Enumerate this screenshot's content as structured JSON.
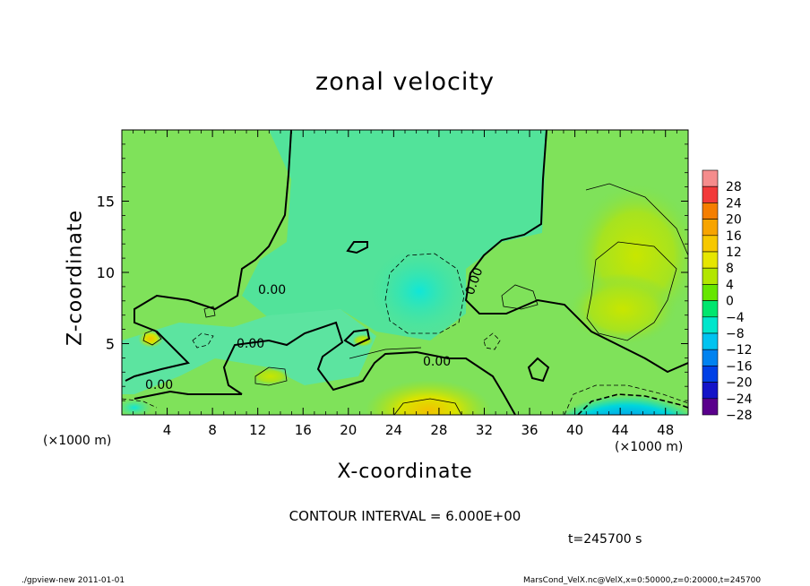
{
  "chart_data": {
    "type": "heatmap",
    "title": "zonal velocity",
    "xlabel": "X-coordinate",
    "ylabel": "Z-coordinate",
    "x_unit": "(×1000 m)",
    "y_unit": "(×1000 m)",
    "xlim": [
      0,
      50
    ],
    "ylim": [
      0,
      20
    ],
    "x_ticks": [
      "4",
      "8",
      "12",
      "16",
      "20",
      "24",
      "28",
      "32",
      "36",
      "40",
      "44",
      "48"
    ],
    "y_ticks": [
      "5",
      "10",
      "15"
    ],
    "colorbar_labels": [
      "28",
      "24",
      "20",
      "16",
      "12",
      "8",
      "4",
      "0",
      "−4",
      "−8",
      "−12",
      "−16",
      "−20",
      "−24",
      "−28"
    ],
    "colorbar_colors": [
      "#f58c8c",
      "#f23a3a",
      "#f57e00",
      "#f7a400",
      "#f6c800",
      "#e6e600",
      "#b2e600",
      "#66e600",
      "#00e66e",
      "#00e6cc",
      "#00c3f0",
      "#0082f0",
      "#0040e6",
      "#1414c8",
      "#5a008c"
    ],
    "contour_labels": [
      "0.00",
      "0.00",
      "0.00",
      "0.00",
      "0.00"
    ],
    "contour_interval_text": "CONTOUR INTERVAL = 6.000E+00",
    "time_text": "t=245700 s"
  },
  "footer": {
    "left": "./gpview-new  2011-01-01",
    "right": "MarsCond_VelX.nc@VelX,x=0:50000,z=0:20000,t=245700"
  }
}
